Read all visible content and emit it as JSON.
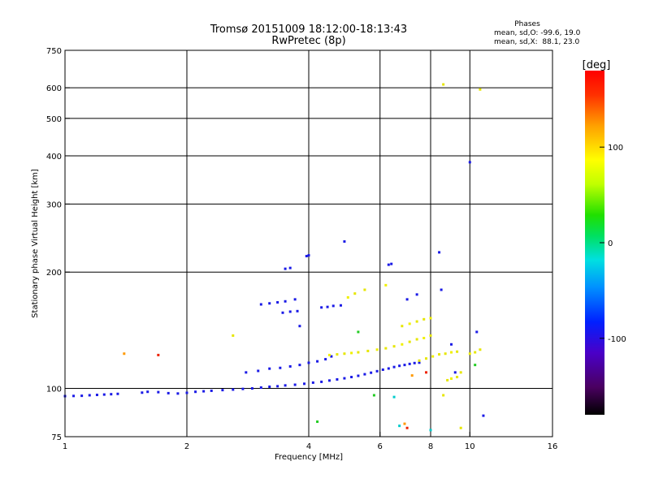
{
  "chart_data": {
    "type": "scatter",
    "title": "Tromsø 20151009 18:12:00-18:13:43",
    "subtitle": "RwPretec (8p)",
    "xlabel": "Frequency [MHz]",
    "ylabel": "Stationary phase Virtual Height [km]",
    "x_scale": "log",
    "y_scale": "log",
    "xlim": [
      1,
      16
    ],
    "ylim": [
      75,
      750
    ],
    "x_ticks": [
      "1",
      "2",
      "4",
      "6",
      "8",
      "10",
      "16"
    ],
    "x_tick_values": [
      1,
      2,
      4,
      6,
      8,
      10,
      16
    ],
    "y_ticks": [
      "75",
      "100",
      "200",
      "300",
      "400",
      "500",
      "600",
      "750"
    ],
    "y_tick_values": [
      75,
      100,
      200,
      300,
      400,
      500,
      600,
      750
    ],
    "grid": true,
    "phases_box": {
      "title": "Phases",
      "line_o": "mean, sd,O: -99.6, 19.0",
      "line_x": "mean, sd,X:  88.1, 23.0"
    },
    "colorbar": {
      "label": "[deg]",
      "ticks": [
        "100",
        "0",
        "-100"
      ],
      "tick_values": [
        100,
        0,
        -100
      ],
      "range": [
        -180,
        180
      ]
    },
    "colors": {
      "o_mode": "#1a1ae6",
      "x_mode": "#e6e600",
      "x_mode_dense": "#f0f000",
      "scatter_green": "#22cc22",
      "scatter_cyan": "#00cccc",
      "scatter_orange": "#ff9900",
      "scatter_red": "#ee2200"
    },
    "series": [
      {
        "mode": "o",
        "points": [
          [
            1.0,
            95.5
          ],
          [
            1.05,
            95.6
          ],
          [
            1.1,
            95.7
          ],
          [
            1.15,
            96.0
          ],
          [
            1.2,
            96.2
          ],
          [
            1.25,
            96.4
          ],
          [
            1.3,
            96.6
          ],
          [
            1.35,
            96.8
          ],
          [
            1.55,
            97.5
          ],
          [
            1.6,
            98.0
          ],
          [
            1.7,
            97.8
          ],
          [
            1.8,
            97.2
          ],
          [
            1.9,
            97.0
          ],
          [
            2.0,
            97.4
          ],
          [
            2.1,
            98.0
          ],
          [
            2.2,
            98.3
          ],
          [
            2.3,
            98.6
          ],
          [
            2.45,
            99.0
          ],
          [
            2.6,
            99.3
          ],
          [
            2.75,
            99.7
          ],
          [
            2.9,
            100.0
          ],
          [
            3.05,
            100.5
          ],
          [
            3.2,
            101.0
          ],
          [
            3.35,
            101.3
          ],
          [
            3.5,
            101.8
          ],
          [
            3.7,
            102.2
          ],
          [
            3.9,
            102.8
          ],
          [
            4.1,
            103.5
          ],
          [
            4.3,
            104.0
          ],
          [
            4.5,
            104.8
          ],
          [
            4.7,
            105.5
          ],
          [
            4.9,
            106.2
          ],
          [
            5.1,
            107.0
          ],
          [
            5.3,
            107.8
          ],
          [
            5.5,
            108.8
          ],
          [
            5.7,
            109.8
          ],
          [
            5.9,
            110.8
          ],
          [
            6.1,
            111.8
          ],
          [
            6.3,
            112.6
          ],
          [
            6.5,
            113.6
          ],
          [
            6.7,
            114.4
          ],
          [
            6.9,
            115.0
          ],
          [
            7.1,
            115.7
          ],
          [
            7.3,
            116.3
          ],
          [
            7.5,
            116.6
          ],
          [
            2.8,
            110.0
          ],
          [
            3.0,
            111.0
          ],
          [
            3.2,
            112.5
          ],
          [
            3.4,
            113.0
          ],
          [
            3.6,
            114.0
          ],
          [
            3.8,
            115.0
          ],
          [
            4.0,
            116.5
          ],
          [
            4.2,
            117.5
          ],
          [
            4.4,
            119.0
          ],
          [
            4.55,
            121.0
          ],
          [
            3.05,
            165.0
          ],
          [
            3.2,
            166.0
          ],
          [
            3.35,
            167.0
          ],
          [
            3.5,
            168.0
          ],
          [
            3.7,
            170.0
          ],
          [
            3.45,
            157.0
          ],
          [
            3.6,
            158.0
          ],
          [
            3.75,
            158.5
          ],
          [
            4.3,
            162.0
          ],
          [
            4.45,
            162.5
          ],
          [
            4.6,
            163.5
          ],
          [
            4.8,
            164.0
          ],
          [
            3.5,
            204.0
          ],
          [
            3.6,
            205.0
          ],
          [
            3.95,
            220.0
          ],
          [
            4.0,
            221.0
          ],
          [
            6.3,
            209.0
          ],
          [
            6.4,
            210.0
          ],
          [
            8.4,
            225.0
          ],
          [
            4.9,
            240.0
          ],
          [
            7.0,
            170.0
          ],
          [
            7.4,
            175.0
          ],
          [
            8.5,
            180.0
          ],
          [
            9.0,
            130.0
          ],
          [
            10.0,
            385.0
          ],
          [
            10.4,
            140.0
          ]
        ]
      },
      {
        "mode": "x",
        "points": [
          [
            4.5,
            122.0
          ],
          [
            4.7,
            122.5
          ],
          [
            4.9,
            123.0
          ],
          [
            5.1,
            123.5
          ],
          [
            5.3,
            124.0
          ],
          [
            5.6,
            125.0
          ],
          [
            5.9,
            126.0
          ],
          [
            6.2,
            127.0
          ],
          [
            6.5,
            128.5
          ],
          [
            6.8,
            130.0
          ],
          [
            7.1,
            132.0
          ],
          [
            7.4,
            134.0
          ],
          [
            7.7,
            135.0
          ],
          [
            8.0,
            137.0
          ],
          [
            6.8,
            145.0
          ],
          [
            7.1,
            147.0
          ],
          [
            7.4,
            149.0
          ],
          [
            7.7,
            151.0
          ],
          [
            8.0,
            152.0
          ],
          [
            7.5,
            118.0
          ],
          [
            7.8,
            119.5
          ],
          [
            8.1,
            121.0
          ],
          [
            8.4,
            122.5
          ],
          [
            8.7,
            123.0
          ],
          [
            9.0,
            124.0
          ],
          [
            9.3,
            124.5
          ],
          [
            8.8,
            105.0
          ],
          [
            9.0,
            106.0
          ],
          [
            9.3,
            107.0
          ],
          [
            9.5,
            110.0
          ],
          [
            10.0,
            123.0
          ],
          [
            10.3,
            124.0
          ],
          [
            10.6,
            126.0
          ],
          [
            5.0,
            172.0
          ],
          [
            5.2,
            176.0
          ],
          [
            5.5,
            180.0
          ],
          [
            6.2,
            185.0
          ],
          [
            8.6,
            612.0
          ],
          [
            10.6,
            594.0
          ]
        ]
      },
      {
        "mode": "mixed",
        "points": [
          [
            5.8,
            96.0
          ],
          [
            6.5,
            95.0
          ],
          [
            7.2,
            108.0
          ],
          [
            7.8,
            110.0
          ],
          [
            8.6,
            96.0
          ],
          [
            9.2,
            110.0
          ],
          [
            10.3,
            115.0
          ],
          [
            6.7,
            80.0
          ],
          [
            6.9,
            81.0
          ],
          [
            7.0,
            79.0
          ],
          [
            9.5,
            79.0
          ],
          [
            10.8,
            85.0
          ],
          [
            4.2,
            82.0
          ],
          [
            8.0,
            78.0
          ],
          [
            1.4,
            123.0
          ],
          [
            1.7,
            122.0
          ],
          [
            2.6,
            137.0
          ],
          [
            3.8,
            145.0
          ],
          [
            5.3,
            140.0
          ]
        ]
      }
    ]
  }
}
